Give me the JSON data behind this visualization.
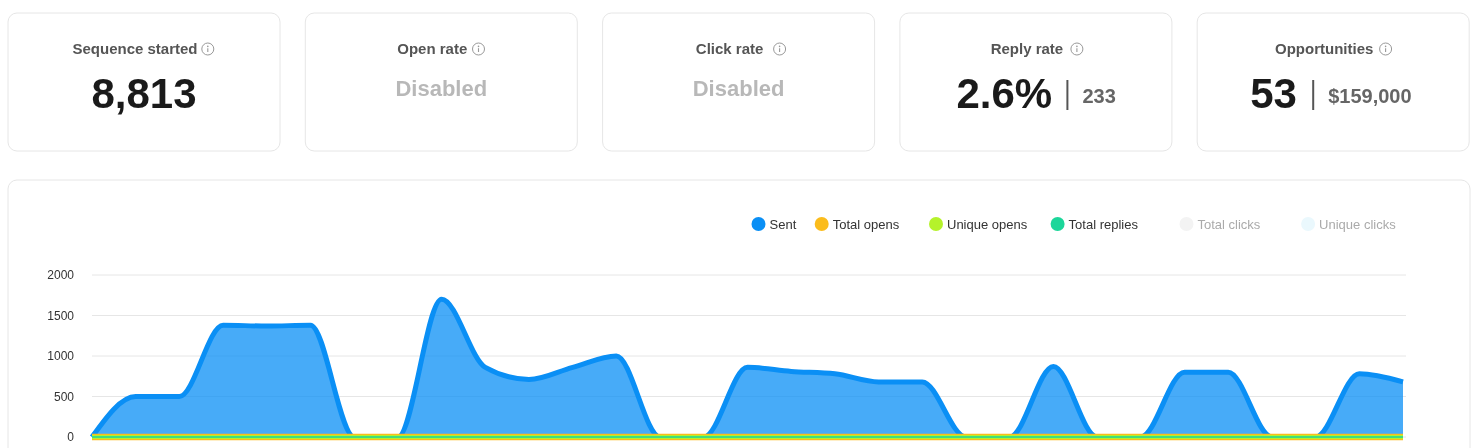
{
  "chart_data": [
    {
      "type": "other",
      "title": "Sequence started",
      "annotations": [
        "8,813"
      ]
    },
    {
      "type": "other",
      "title": "Open rate",
      "subtitle": "Disabled"
    },
    {
      "type": "other",
      "title": "Click rate",
      "subtitle": "Disabled"
    },
    {
      "type": "other",
      "title": "Reply rate",
      "annotations": [
        "2.6%",
        "233"
      ]
    },
    {
      "type": "other",
      "title": "Opportunities",
      "annotations": [
        "53",
        "$159,000"
      ]
    },
    {
      "type": "area",
      "categories": [
        null,
        null,
        null,
        null,
        null,
        null,
        null,
        null,
        null,
        null,
        null,
        null,
        null,
        null,
        null,
        null,
        null,
        null,
        null,
        null,
        null,
        null,
        null,
        null,
        null,
        null,
        null,
        null,
        null,
        null,
        null
      ],
      "ylim": [
        0,
        2000
      ],
      "yticks": [
        0,
        500,
        1000,
        1500,
        2000
      ],
      "grid": "y",
      "legend": "top right",
      "tick_labels": "y",
      "series": [
        {
          "name": "Sent",
          "color": "#0a8ff5",
          "values": [
            0,
            500,
            500,
            1380,
            1370,
            1380,
            0,
            0,
            1700,
            860,
            710,
            860,
            1000,
            0,
            0,
            860,
            810,
            780,
            680,
            680,
            0,
            0,
            870,
            0,
            0,
            800,
            800,
            0,
            0,
            780,
            680
          ]
        },
        {
          "name": "Total opens",
          "type": "line",
          "color": "#fbbc1c",
          "values": [
            0,
            0,
            0,
            0,
            0,
            0,
            0,
            0,
            0,
            0,
            0,
            0,
            0,
            0,
            0,
            0,
            0,
            0,
            0,
            0,
            0,
            0,
            0,
            0,
            0,
            0,
            0,
            0,
            0,
            0,
            0
          ]
        },
        {
          "name": "Unique opens",
          "type": "line",
          "color": "#b5f22b",
          "values": [
            0,
            0,
            0,
            0,
            0,
            0,
            0,
            0,
            0,
            0,
            0,
            0,
            0,
            0,
            0,
            0,
            0,
            0,
            0,
            0,
            0,
            0,
            0,
            0,
            0,
            0,
            0,
            0,
            0,
            0,
            0
          ]
        },
        {
          "name": "Total replies",
          "type": "line",
          "color": "#1cd69a",
          "values": [
            0,
            0,
            0,
            0,
            0,
            0,
            0,
            0,
            0,
            0,
            0,
            0,
            0,
            0,
            0,
            0,
            0,
            0,
            0,
            0,
            0,
            0,
            0,
            0,
            0,
            0,
            0,
            0,
            0,
            0,
            0
          ]
        },
        {
          "name": "Total clicks",
          "color": "#f3f3f3",
          "values": [
            null,
            null,
            null,
            null,
            null,
            null,
            null,
            null,
            null,
            null,
            null,
            null,
            null,
            null,
            null,
            null,
            null,
            null,
            null,
            null,
            null,
            null,
            null,
            null,
            null,
            null,
            null,
            null,
            null,
            null,
            null
          ]
        },
        {
          "name": "Unique clicks",
          "color": "#eaf8fd",
          "values": [
            null,
            null,
            null,
            null,
            null,
            null,
            null,
            null,
            null,
            null,
            null,
            null,
            null,
            null,
            null,
            null,
            null,
            null,
            null,
            null,
            null,
            null,
            null,
            null,
            null,
            null,
            null,
            null,
            null,
            null,
            null
          ]
        }
      ]
    }
  ]
}
